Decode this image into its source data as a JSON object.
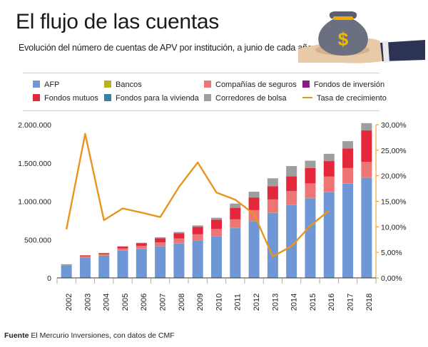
{
  "header": {
    "title": "El flujo de las cuentas",
    "subtitle": "Evolución del número de cuentas de APV por institución, a junio de cada año"
  },
  "footer": {
    "source_label": "Fuente",
    "source_text": " El Mercurio Inversiones, con datos de CMF"
  },
  "illustration": {
    "icon": "money-bag-icon",
    "symbol": "$"
  },
  "chart_data": {
    "type": "bar",
    "stacked": true,
    "categories": [
      "2002",
      "2003",
      "2004",
      "2005",
      "2006",
      "2007",
      "2008",
      "2009",
      "2010",
      "2011",
      "2012",
      "2013",
      "2014",
      "2015",
      "2016",
      "2017",
      "2018"
    ],
    "ylim": [
      0,
      2000000
    ],
    "y_ticks": [
      "0",
      "500.000",
      "1.000.000",
      "1.500.000",
      "2.000.000"
    ],
    "y2lim": [
      0,
      30
    ],
    "y2_ticks": [
      "0,00%",
      "5,00%",
      "10,00%",
      "15,00%",
      "20,00%",
      "25,00%",
      "30,00%"
    ],
    "grid": false,
    "legend_position": "top",
    "series": [
      {
        "name": "AFP",
        "color": "#6f97d6",
        "values": [
          165000,
          265000,
          290000,
          355000,
          380000,
          410000,
          450000,
          490000,
          545000,
          650000,
          740000,
          850000,
          950000,
          1040000,
          1120000,
          1230000,
          1310000
        ]
      },
      {
        "name": "Bancos",
        "color": "#b9b21d",
        "values": [
          3000,
          3000,
          3000,
          3000,
          3000,
          3000,
          3000,
          3000,
          3000,
          3000,
          3000,
          3000,
          3000,
          3000,
          3000,
          3000,
          3000
        ]
      },
      {
        "name": "Compañías de seguros",
        "color": "#ee7576",
        "values": [
          5000,
          15000,
          15000,
          25000,
          35000,
          50000,
          60000,
          75000,
          90000,
          110000,
          140000,
          170000,
          180000,
          190000,
          200000,
          200000,
          200000
        ]
      },
      {
        "name": "Fondos de inversión",
        "color": "#8b1a86",
        "values": [
          1000,
          1000,
          1000,
          1000,
          1000,
          1000,
          1000,
          2000,
          2000,
          2000,
          2000,
          2000,
          2000,
          2000,
          2000,
          2000,
          2000
        ]
      },
      {
        "name": "Fondos mutuos",
        "color": "#e5273b",
        "values": [
          3000,
          10000,
          15000,
          25000,
          35000,
          55000,
          70000,
          95000,
          120000,
          150000,
          165000,
          170000,
          190000,
          200000,
          200000,
          255000,
          410000
        ]
      },
      {
        "name": "Fondos para la vivienda",
        "color": "#3a7fa6",
        "values": [
          0,
          0,
          0,
          0,
          0,
          0,
          0,
          0,
          0,
          0,
          0,
          0,
          0,
          0,
          0,
          0,
          0
        ]
      },
      {
        "name": "Corredores de bolsa",
        "color": "#9e9e9e",
        "values": [
          1000,
          2000,
          2000,
          3000,
          5000,
          10000,
          15000,
          20000,
          25000,
          55000,
          75000,
          105000,
          135000,
          95000,
          95000,
          95000,
          95000
        ]
      }
    ],
    "line": {
      "name": "Tasa de crecimiento",
      "color": "#e8951e",
      "values": [
        9.5,
        28.2,
        11.3,
        13.6,
        12.8,
        11.9,
        17.8,
        22.6,
        16.7,
        15.3,
        12.5,
        4.2,
        6.2,
        10.2,
        13.2
      ]
    }
  }
}
